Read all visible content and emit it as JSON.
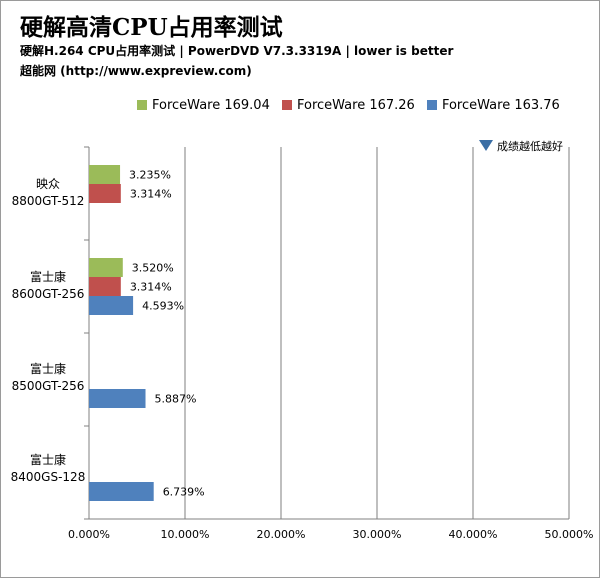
{
  "header": {
    "title": "硬解高清CPU占用率测试",
    "subtitle": "硬解H.264 CPU占用率测试 | PowerDVD V7.3.3319A  | lower is better",
    "source": "超能网 (http://www.expreview.com)"
  },
  "note": {
    "text": "成绩越低越好",
    "icon": "down-triangle-icon",
    "color": "#3a6ea5"
  },
  "chart_data": {
    "type": "bar",
    "orientation": "horizontal",
    "title": "硬解高清CPU占用率测试",
    "categories": [
      {
        "line1": "映众",
        "line2": "8800GT-512"
      },
      {
        "line1": "富士康",
        "line2": "8600GT-256"
      },
      {
        "line1": "富士康",
        "line2": "8500GT-256"
      },
      {
        "line1": "富士康",
        "line2": "8400GS-128"
      }
    ],
    "series": [
      {
        "name": "ForceWare 169.04",
        "color": "#9bbb59",
        "values": [
          3.235,
          3.52,
          null,
          null
        ],
        "labels": [
          "3.235%",
          "3.520%",
          "",
          ""
        ]
      },
      {
        "name": "ForceWare 167.26",
        "color": "#c0504d",
        "values": [
          3.314,
          3.314,
          null,
          null
        ],
        "labels": [
          "3.314%",
          "3.314%",
          "",
          ""
        ]
      },
      {
        "name": "ForceWare 163.76",
        "color": "#4f81bd",
        "values": [
          null,
          4.593,
          5.887,
          6.739
        ],
        "labels": [
          "",
          "4.593%",
          "5.887%",
          "6.739%"
        ]
      }
    ],
    "xlim": [
      0,
      50
    ],
    "xticks": [
      0,
      10,
      20,
      30,
      40,
      50
    ],
    "xtick_labels": [
      "0.000%",
      "10.000%",
      "20.000%",
      "30.000%",
      "40.000%",
      "50.000%"
    ],
    "grid": true,
    "legend": "top"
  }
}
